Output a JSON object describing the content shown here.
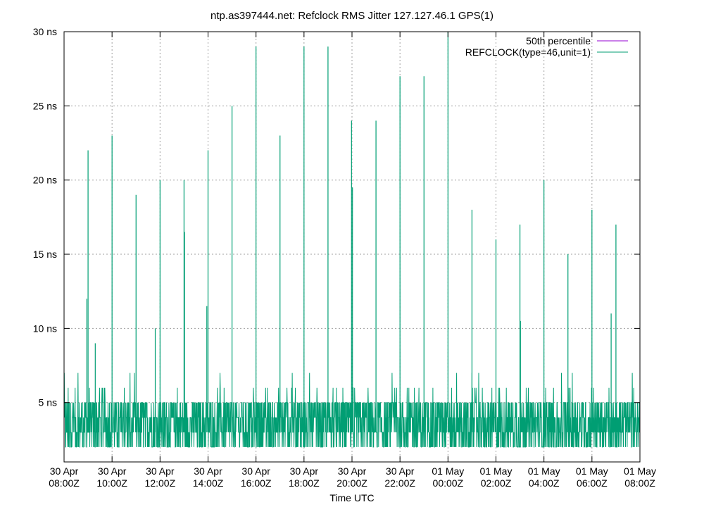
{
  "chart_data": {
    "type": "line",
    "title": "ntp.as397444.net: Refclock RMS Jitter 127.127.46.1 GPS(1)",
    "xlabel": "Time UTC",
    "ylabel": "",
    "ylim": [
      1,
      30
    ],
    "xlim_hours": [
      0,
      24
    ],
    "grid": true,
    "legend_position": "top-right",
    "y_ticks": [
      {
        "value": 5,
        "label": "5 ns"
      },
      {
        "value": 10,
        "label": "10 ns"
      },
      {
        "value": 15,
        "label": "15 ns"
      },
      {
        "value": 20,
        "label": "20 ns"
      },
      {
        "value": 25,
        "label": "25 ns"
      },
      {
        "value": 30,
        "label": "30 ns"
      }
    ],
    "x_ticks": [
      {
        "hour": 0,
        "date": "30 Apr",
        "time": "08:00Z"
      },
      {
        "hour": 2,
        "date": "30 Apr",
        "time": "10:00Z"
      },
      {
        "hour": 4,
        "date": "30 Apr",
        "time": "12:00Z"
      },
      {
        "hour": 6,
        "date": "30 Apr",
        "time": "14:00Z"
      },
      {
        "hour": 8,
        "date": "30 Apr",
        "time": "16:00Z"
      },
      {
        "hour": 10,
        "date": "30 Apr",
        "time": "18:00Z"
      },
      {
        "hour": 12,
        "date": "30 Apr",
        "time": "20:00Z"
      },
      {
        "hour": 14,
        "date": "30 Apr",
        "time": "22:00Z"
      },
      {
        "hour": 16,
        "date": "01 May",
        "time": "00:00Z"
      },
      {
        "hour": 18,
        "date": "01 May",
        "time": "02:00Z"
      },
      {
        "hour": 20,
        "date": "01 May",
        "time": "04:00Z"
      },
      {
        "hour": 22,
        "date": "01 May",
        "time": "06:00Z"
      },
      {
        "hour": 24,
        "date": "01 May",
        "time": "08:00Z"
      }
    ],
    "series": [
      {
        "name": "50th percentile",
        "color": "#9400d3",
        "values": []
      },
      {
        "name": "REFCLOCK(type=46,unit=1)",
        "color": "#009e73",
        "baseline_range_ns": [
          2,
          5
        ],
        "spikes": [
          {
            "hour": 0.95,
            "value": 12
          },
          {
            "hour": 1.0,
            "value": 22
          },
          {
            "hour": 1.3,
            "value": 9
          },
          {
            "hour": 2.0,
            "value": 23
          },
          {
            "hour": 3.0,
            "value": 19
          },
          {
            "hour": 3.8,
            "value": 10
          },
          {
            "hour": 4.0,
            "value": 20
          },
          {
            "hour": 5.0,
            "value": 20
          },
          {
            "hour": 5.02,
            "value": 16.5
          },
          {
            "hour": 5.95,
            "value": 11.5
          },
          {
            "hour": 6.0,
            "value": 22
          },
          {
            "hour": 7.0,
            "value": 25
          },
          {
            "hour": 8.0,
            "value": 29
          },
          {
            "hour": 9.0,
            "value": 23
          },
          {
            "hour": 10.0,
            "value": 29
          },
          {
            "hour": 11.0,
            "value": 29
          },
          {
            "hour": 11.98,
            "value": 24
          },
          {
            "hour": 12.02,
            "value": 19.5
          },
          {
            "hour": 13.0,
            "value": 24
          },
          {
            "hour": 14.0,
            "value": 27
          },
          {
            "hour": 15.0,
            "value": 27
          },
          {
            "hour": 16.0,
            "value": 30
          },
          {
            "hour": 17.0,
            "value": 18
          },
          {
            "hour": 18.0,
            "value": 16
          },
          {
            "hour": 19.0,
            "value": 17
          },
          {
            "hour": 19.02,
            "value": 10.5
          },
          {
            "hour": 20.0,
            "value": 20
          },
          {
            "hour": 21.0,
            "value": 15
          },
          {
            "hour": 22.0,
            "value": 18
          },
          {
            "hour": 22.8,
            "value": 11
          },
          {
            "hour": 23.0,
            "value": 17
          }
        ]
      }
    ]
  }
}
